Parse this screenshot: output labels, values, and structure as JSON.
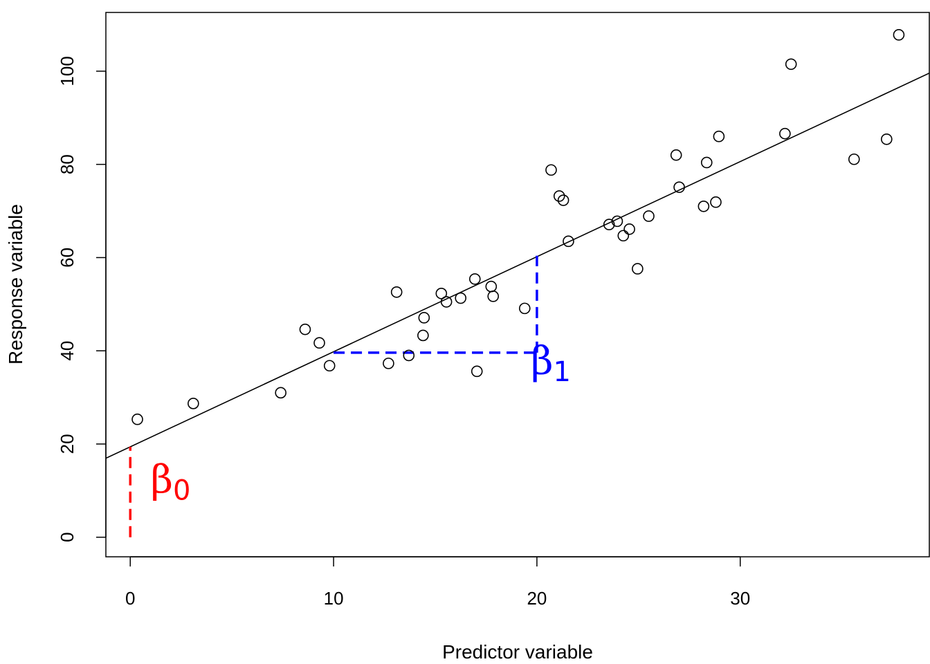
{
  "chart_data": {
    "type": "scatter",
    "title": "",
    "xlabel": "Predictor variable",
    "ylabel": "Response variable",
    "xlim": [
      -1.2,
      39.3
    ],
    "ylim": [
      -4.2,
      112.6
    ],
    "xticks": [
      0,
      10,
      20,
      30
    ],
    "yticks": [
      0,
      20,
      40,
      60,
      80,
      100
    ],
    "grid": false,
    "points": [
      [
        0.35,
        25.3
      ],
      [
        3.1,
        28.7
      ],
      [
        7.4,
        31.0
      ],
      [
        8.6,
        44.6
      ],
      [
        9.3,
        41.7
      ],
      [
        9.8,
        36.8
      ],
      [
        12.7,
        37.3
      ],
      [
        13.1,
        52.6
      ],
      [
        13.7,
        39.0
      ],
      [
        14.4,
        43.3
      ],
      [
        14.45,
        47.1
      ],
      [
        15.3,
        52.3
      ],
      [
        15.55,
        50.5
      ],
      [
        16.25,
        51.3
      ],
      [
        16.95,
        55.4
      ],
      [
        17.05,
        35.6
      ],
      [
        17.75,
        53.8
      ],
      [
        17.85,
        51.7
      ],
      [
        19.4,
        49.1
      ],
      [
        20.7,
        78.8
      ],
      [
        21.1,
        73.2
      ],
      [
        21.3,
        72.3
      ],
      [
        21.55,
        63.5
      ],
      [
        23.55,
        67.1
      ],
      [
        23.95,
        67.8
      ],
      [
        24.25,
        64.7
      ],
      [
        24.55,
        66.1
      ],
      [
        24.95,
        57.6
      ],
      [
        25.5,
        68.9
      ],
      [
        26.85,
        82.0
      ],
      [
        27.0,
        75.1
      ],
      [
        28.2,
        71.0
      ],
      [
        28.35,
        80.4
      ],
      [
        28.8,
        71.9
      ],
      [
        28.95,
        86.0
      ],
      [
        32.2,
        86.6
      ],
      [
        32.5,
        101.5
      ],
      [
        35.6,
        81.1
      ],
      [
        37.2,
        85.4
      ],
      [
        37.8,
        107.8
      ]
    ],
    "regression": {
      "intercept": 19.4,
      "slope": 2.04
    },
    "annotations": [
      {
        "id": "beta0",
        "symbol": "β",
        "subscript": "0",
        "color": "#ff0000",
        "x1": 0,
        "y1": 0,
        "x2": 0,
        "y2": 19.4,
        "label_x": 1.0,
        "label_y": 9.5
      },
      {
        "id": "beta1",
        "symbol": "β",
        "subscript": "1",
        "color": "#0000ff",
        "hx1": 10,
        "hx2": 20,
        "hy": 39.6,
        "vx": 20,
        "vy1": 39.6,
        "vy2": 60.4,
        "label_x": 19.7,
        "label_y": 35.0
      }
    ]
  }
}
